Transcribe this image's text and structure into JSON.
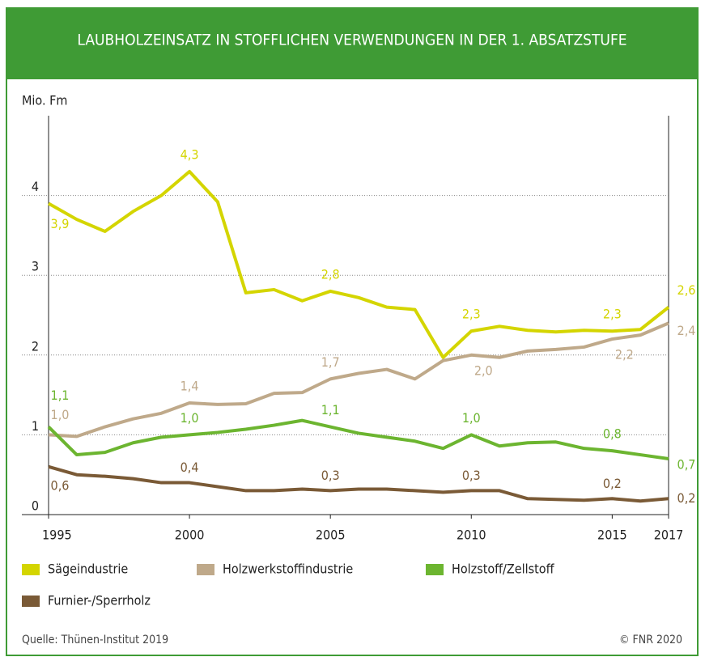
{
  "chart_data": {
    "type": "line",
    "title": "LAUBHOLZEINSATZ IN STOFFLICHEN VERWENDUNGEN IN DER 1. ABSATZSTUFE",
    "y_label": "Mio. Fm",
    "x": [
      1995,
      1996,
      1997,
      1998,
      1999,
      2000,
      2001,
      2002,
      2003,
      2004,
      2005,
      2006,
      2007,
      2008,
      2009,
      2010,
      2011,
      2012,
      2013,
      2014,
      2015,
      2016,
      2017
    ],
    "xlim": [
      1995,
      2017
    ],
    "xticks": [
      1995,
      2000,
      2005,
      2010,
      2015,
      2017
    ],
    "ylim": [
      0,
      5
    ],
    "yticks": [
      0,
      1,
      2,
      3,
      4
    ],
    "grid": true,
    "series": [
      {
        "name": "Sägeindustrie",
        "color": "#d4d500",
        "values": [
          3.9,
          3.7,
          3.55,
          3.8,
          4.0,
          4.3,
          3.92,
          2.78,
          2.82,
          2.68,
          2.8,
          2.72,
          2.6,
          2.57,
          1.97,
          2.3,
          2.36,
          2.31,
          2.29,
          2.31,
          2.3,
          2.32,
          2.6
        ],
        "value_labels": [
          "3,9",
          null,
          null,
          null,
          null,
          "4,3",
          null,
          null,
          null,
          null,
          "2,8",
          null,
          null,
          null,
          null,
          "2,3",
          null,
          null,
          null,
          null,
          "2,3",
          null,
          "2,6"
        ]
      },
      {
        "name": "Holzwerkstoffindustrie",
        "color": "#bfa98a",
        "values": [
          1.0,
          0.98,
          1.1,
          1.2,
          1.27,
          1.4,
          1.38,
          1.39,
          1.52,
          1.53,
          1.7,
          1.77,
          1.82,
          1.7,
          1.93,
          2.0,
          1.97,
          2.05,
          2.07,
          2.1,
          2.2,
          2.25,
          2.4
        ],
        "value_labels": [
          "1,0",
          null,
          null,
          null,
          null,
          "1,4",
          null,
          null,
          null,
          null,
          "1,7",
          null,
          null,
          null,
          null,
          "2,0",
          null,
          null,
          null,
          null,
          "2,2",
          null,
          "2,4"
        ]
      },
      {
        "name": "Holzstoff/Zellstoff",
        "color": "#6cb530",
        "values": [
          1.1,
          0.75,
          0.78,
          0.9,
          0.97,
          1.0,
          1.03,
          1.07,
          1.12,
          1.18,
          1.1,
          1.02,
          0.97,
          0.92,
          0.83,
          1.0,
          0.86,
          0.9,
          0.91,
          0.83,
          0.8,
          0.75,
          0.7
        ],
        "value_labels": [
          "1,1",
          null,
          null,
          null,
          null,
          "1,0",
          null,
          null,
          null,
          null,
          "1,1",
          null,
          null,
          null,
          null,
          "1,0",
          null,
          null,
          null,
          null,
          "0,8",
          null,
          "0,7"
        ]
      },
      {
        "name": "Furnier-/Sperrholz",
        "color": "#7a5a36",
        "values": [
          0.6,
          0.5,
          0.48,
          0.45,
          0.4,
          0.4,
          0.35,
          0.3,
          0.3,
          0.32,
          0.3,
          0.32,
          0.32,
          0.3,
          0.28,
          0.3,
          0.3,
          0.2,
          0.19,
          0.18,
          0.2,
          0.17,
          0.2
        ],
        "value_labels": [
          "0,6",
          null,
          null,
          null,
          null,
          "0,4",
          null,
          null,
          null,
          null,
          "0,3",
          null,
          null,
          null,
          null,
          "0,3",
          null,
          null,
          null,
          null,
          "0,2",
          null,
          "0,2"
        ]
      }
    ],
    "source": "Quelle: Thünen-Institut 2019",
    "copyright": "© FNR 2020"
  }
}
